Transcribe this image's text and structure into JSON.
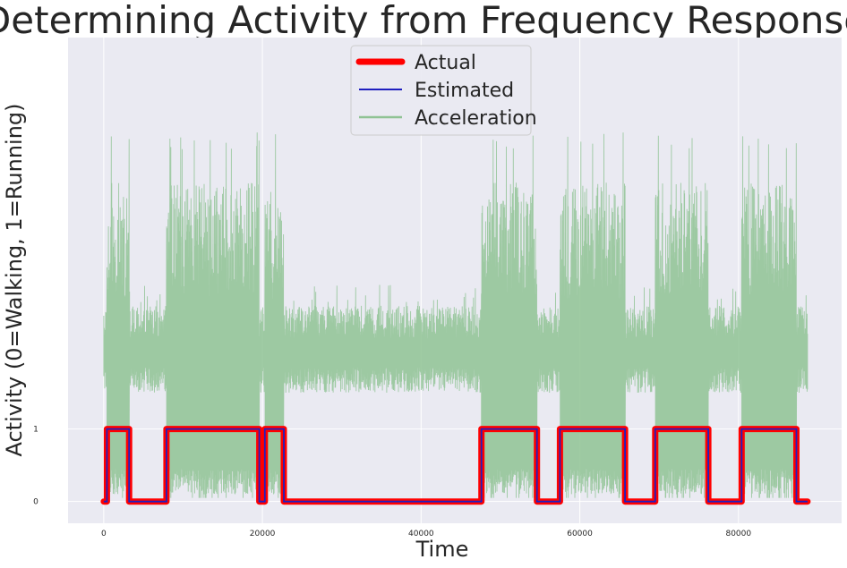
{
  "chart_data": {
    "type": "line",
    "title": "Determining Activity from Frequency Response",
    "xlabel": "Time",
    "ylabel": "Activity (0=Walking, 1=Running)",
    "xlim": [
      -4500,
      93000
    ],
    "ylim": [
      -0.3,
      6.4
    ],
    "x_ticks": [
      0,
      20000,
      40000,
      60000,
      80000
    ],
    "x_tick_labels": [
      "0",
      "20000",
      "40000",
      "60000",
      "80000"
    ],
    "y_ticks": [
      0,
      1
    ],
    "y_tick_labels": [
      "0",
      "1"
    ],
    "grid": true,
    "legend_position": "upper center",
    "colors": {
      "actual": "#ff0000",
      "estimated": "#1f1fbf",
      "acceleration": "#8fc394",
      "background": "#eaeaf2",
      "grid": "#ffffff"
    },
    "segments": [
      {
        "start": 0,
        "end": 400,
        "activity": 0
      },
      {
        "start": 400,
        "end": 3200,
        "activity": 1
      },
      {
        "start": 3200,
        "end": 7900,
        "activity": 0
      },
      {
        "start": 7900,
        "end": 19600,
        "activity": 1
      },
      {
        "start": 19600,
        "end": 20300,
        "activity": 0
      },
      {
        "start": 20300,
        "end": 22700,
        "activity": 1
      },
      {
        "start": 22700,
        "end": 47600,
        "activity": 0
      },
      {
        "start": 47600,
        "end": 54600,
        "activity": 1
      },
      {
        "start": 54600,
        "end": 57500,
        "activity": 0
      },
      {
        "start": 57500,
        "end": 65700,
        "activity": 1
      },
      {
        "start": 65700,
        "end": 69500,
        "activity": 0
      },
      {
        "start": 69500,
        "end": 76200,
        "activity": 1
      },
      {
        "start": 76200,
        "end": 80400,
        "activity": 0
      },
      {
        "start": 80400,
        "end": 87300,
        "activity": 1
      },
      {
        "start": 87300,
        "end": 88700,
        "activity": 0
      }
    ],
    "acceleration_envelope": {
      "walking": {
        "base": 2.0,
        "low": 1.5,
        "high": 2.7,
        "peak": 3.0
      },
      "running": {
        "low": 0.1,
        "high": 4.4,
        "peak": 5.1
      }
    },
    "series": [
      {
        "name": "Actual",
        "style": "thick-line"
      },
      {
        "name": "Estimated",
        "style": "thin-line"
      },
      {
        "name": "Acceleration",
        "style": "faint-line"
      }
    ]
  }
}
